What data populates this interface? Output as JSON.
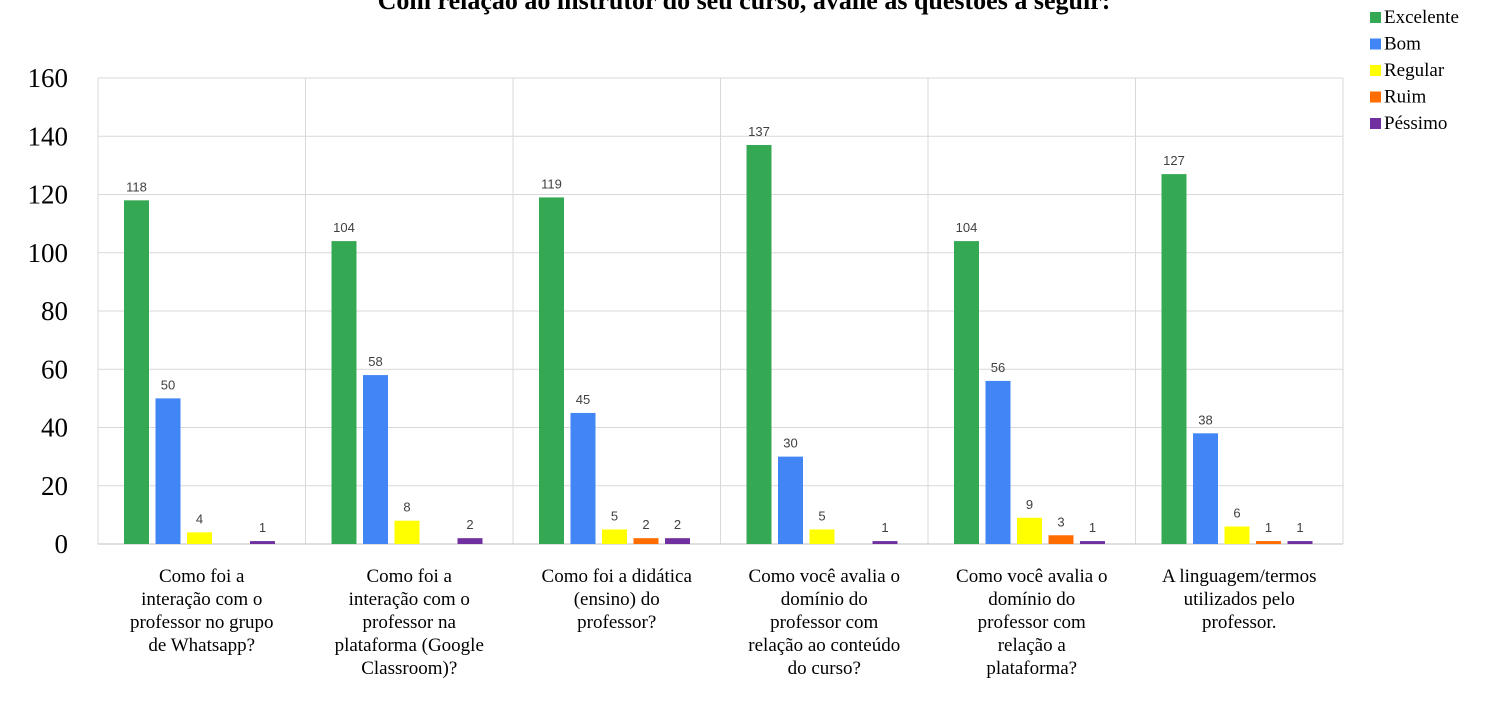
{
  "chart_data": {
    "type": "bar",
    "title": "Com relação ao instrutor do seu curso, avalie as questões a seguir:",
    "xlabel": "",
    "ylabel": "",
    "ylim": [
      0,
      160
    ],
    "yticks": [
      0,
      20,
      40,
      60,
      80,
      100,
      120,
      140,
      160
    ],
    "grid": true,
    "legend_position": "top-right",
    "categories": [
      [
        "Como foi a",
        "interação com o",
        "professor no grupo",
        "de Whatsapp?"
      ],
      [
        "Como foi a",
        "interação com o",
        "professor na",
        "plataforma (Google",
        "Classroom)?"
      ],
      [
        "Como foi a didática",
        "(ensino) do",
        "professor?"
      ],
      [
        "Como você avalia o",
        "domínio do",
        "professor com",
        "relação ao conteúdo",
        "do curso?"
      ],
      [
        "Como você avalia o",
        "domínio do",
        "professor com",
        "relação a",
        "plataforma?"
      ],
      [
        "A linguagem/termos",
        "utilizados pelo",
        "professor."
      ]
    ],
    "series": [
      {
        "name": "Excelente",
        "color": "#34A853",
        "values": [
          118,
          104,
          119,
          137,
          104,
          127
        ],
        "labels": [
          "118",
          "104",
          "119",
          "137",
          "104",
          "127"
        ]
      },
      {
        "name": "Bom",
        "color": "#4285F4",
        "values": [
          50,
          58,
          45,
          30,
          56,
          38
        ],
        "labels": [
          "50",
          "58",
          "45",
          "30",
          "56",
          "38"
        ]
      },
      {
        "name": "Regular",
        "color": "#FFFF00",
        "values": [
          4,
          8,
          5,
          5,
          9,
          6
        ],
        "labels": [
          "4",
          "8",
          "5",
          "5",
          "9",
          "6"
        ]
      },
      {
        "name": "Ruim",
        "color": "#FF6D01",
        "values": [
          0,
          0,
          2,
          0,
          3,
          1
        ],
        "labels": [
          "",
          "",
          "2",
          "",
          "3",
          "1"
        ]
      },
      {
        "name": "Péssimo",
        "color": "#7030A0",
        "values": [
          1,
          2,
          2,
          1,
          1,
          1
        ],
        "labels": [
          "1",
          "2",
          "2",
          "1",
          "1",
          "1"
        ]
      }
    ]
  }
}
